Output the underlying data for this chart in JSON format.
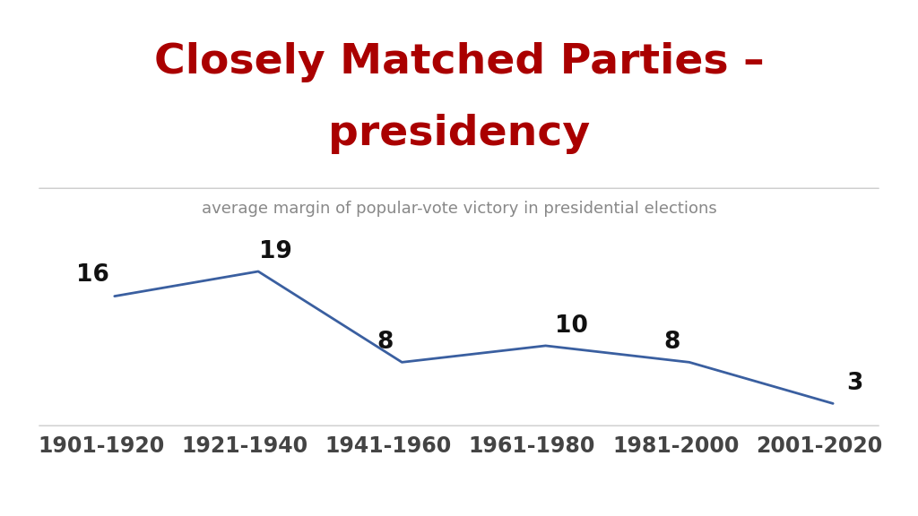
{
  "title_line1": "Closely Matched Parties –",
  "title_line2": "presidency",
  "title_color": "#aa0000",
  "subtitle": "average margin of popular-vote victory in presidential elections",
  "subtitle_color": "#888888",
  "categories": [
    "1901-1920",
    "1921-1940",
    "1941-1960",
    "1961-1980",
    "1981-2000",
    "2001-2020"
  ],
  "values": [
    16,
    19,
    8,
    10,
    8,
    3
  ],
  "line_color": "#3a5fa0",
  "label_color": "#111111",
  "background_color": "#ffffff",
  "title_fontsize": 34,
  "subtitle_fontsize": 13,
  "label_fontsize": 19,
  "tick_fontsize": 17,
  "sep_color": "#cccccc",
  "blue_bar": "#3333bb",
  "red_bar": "#ee0000"
}
